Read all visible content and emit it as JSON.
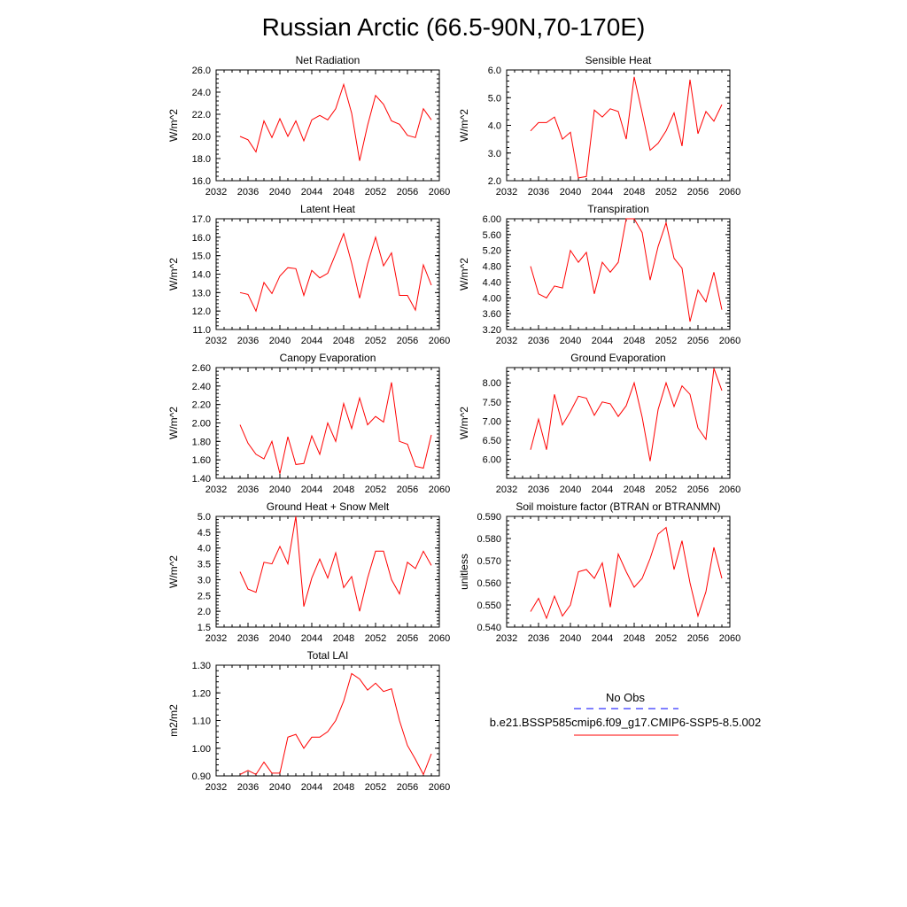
{
  "page": {
    "title": "Russian Arctic (66.5-90N,70-170E)"
  },
  "legend": {
    "obs_label": "No Obs",
    "model_label": "b.e21.BSSP585cmip6.f09_g17.CMIP6-SSP5-8.5.002",
    "obs_color": "#0000ff",
    "model_color": "#ff0000"
  },
  "chart_data": [
    {
      "type": "line",
      "title": "Net Radiation",
      "xlabel": "",
      "ylabel": "W/m^2",
      "xlim": [
        2032,
        2060
      ],
      "ylim": [
        16,
        26
      ],
      "xticks": [
        "2032",
        "2036",
        "2040",
        "2044",
        "2048",
        "2052",
        "2056",
        "2060"
      ],
      "yticks": [
        "16.0",
        "18.0",
        "20.0",
        "22.0",
        "24.0",
        "26.0"
      ],
      "x": [
        2035,
        2036,
        2037,
        2038,
        2039,
        2040,
        2041,
        2042,
        2043,
        2044,
        2045,
        2046,
        2047,
        2048,
        2049,
        2050,
        2051,
        2052,
        2053,
        2054,
        2055,
        2056,
        2057,
        2058,
        2059
      ],
      "series": [
        {
          "values": [
            20.0,
            19.7,
            18.6,
            21.4,
            19.9,
            21.6,
            20.0,
            21.4,
            19.6,
            21.5,
            21.9,
            21.5,
            22.5,
            24.7,
            22.1,
            17.8,
            21.0,
            23.7,
            22.9,
            21.4,
            21.1,
            20.1,
            19.9,
            22.5,
            21.5
          ]
        }
      ]
    },
    {
      "type": "line",
      "title": "Sensible Heat",
      "xlabel": "",
      "ylabel": "W/m^2",
      "xlim": [
        2032,
        2060
      ],
      "ylim": [
        2,
        6
      ],
      "xticks": [
        "2032",
        "2036",
        "2040",
        "2044",
        "2048",
        "2052",
        "2056",
        "2060"
      ],
      "yticks": [
        "2.0",
        "3.0",
        "4.0",
        "5.0",
        "6.0"
      ],
      "x": [
        2035,
        2036,
        2037,
        2038,
        2039,
        2040,
        2041,
        2042,
        2043,
        2044,
        2045,
        2046,
        2047,
        2048,
        2049,
        2050,
        2051,
        2052,
        2053,
        2054,
        2055,
        2056,
        2057,
        2058,
        2059
      ],
      "series": [
        {
          "values": [
            3.8,
            4.1,
            4.1,
            4.3,
            3.5,
            3.75,
            2.1,
            2.15,
            4.55,
            4.3,
            4.6,
            4.5,
            3.5,
            5.75,
            4.45,
            3.1,
            3.35,
            3.8,
            4.45,
            3.25,
            5.65,
            3.7,
            4.5,
            4.15,
            4.75
          ]
        }
      ]
    },
    {
      "type": "line",
      "title": "Latent Heat",
      "xlabel": "",
      "ylabel": "W/m^2",
      "xlim": [
        2032,
        2060
      ],
      "ylim": [
        11,
        17
      ],
      "xticks": [
        "2032",
        "2036",
        "2040",
        "2044",
        "2048",
        "2052",
        "2056",
        "2060"
      ],
      "yticks": [
        "11.0",
        "12.0",
        "13.0",
        "14.0",
        "15.0",
        "16.0",
        "17.0"
      ],
      "x": [
        2035,
        2036,
        2037,
        2038,
        2039,
        2040,
        2041,
        2042,
        2043,
        2044,
        2045,
        2046,
        2047,
        2048,
        2049,
        2050,
        2051,
        2052,
        2053,
        2054,
        2055,
        2056,
        2057,
        2058,
        2059
      ],
      "series": [
        {
          "values": [
            13.0,
            12.9,
            12.0,
            13.55,
            12.95,
            13.9,
            14.35,
            14.3,
            12.85,
            14.2,
            13.8,
            14.05,
            15.1,
            16.2,
            14.6,
            12.7,
            14.55,
            16.0,
            14.45,
            15.15,
            12.85,
            12.85,
            12.05,
            14.5,
            13.4
          ]
        }
      ]
    },
    {
      "type": "line",
      "title": "Transpiration",
      "xlabel": "",
      "ylabel": "W/m^2",
      "xlim": [
        2032,
        2060
      ],
      "ylim": [
        3.2,
        6.0
      ],
      "xticks": [
        "2032",
        "2036",
        "2040",
        "2044",
        "2048",
        "2052",
        "2056",
        "2060"
      ],
      "yticks": [
        "3.20",
        "3.60",
        "4.00",
        "4.40",
        "4.80",
        "5.20",
        "5.60",
        "6.00"
      ],
      "x": [
        2035,
        2036,
        2037,
        2038,
        2039,
        2040,
        2041,
        2042,
        2043,
        2044,
        2045,
        2046,
        2047,
        2048,
        2049,
        2050,
        2051,
        2052,
        2053,
        2054,
        2055,
        2056,
        2057,
        2058,
        2059
      ],
      "series": [
        {
          "values": [
            4.8,
            4.1,
            4.0,
            4.3,
            4.25,
            5.2,
            4.9,
            5.15,
            4.1,
            4.9,
            4.65,
            4.9,
            6.05,
            6.0,
            5.65,
            4.45,
            5.3,
            5.9,
            5.0,
            4.75,
            3.4,
            4.2,
            3.9,
            4.65,
            3.7
          ]
        }
      ]
    },
    {
      "type": "line",
      "title": "Canopy Evaporation",
      "xlabel": "",
      "ylabel": "W/m^2",
      "xlim": [
        2032,
        2060
      ],
      "ylim": [
        1.4,
        2.6
      ],
      "xticks": [
        "2032",
        "2036",
        "2040",
        "2044",
        "2048",
        "2052",
        "2056",
        "2060"
      ],
      "yticks": [
        "1.40",
        "1.60",
        "1.80",
        "2.00",
        "2.20",
        "2.40",
        "2.60"
      ],
      "x": [
        2035,
        2036,
        2037,
        2038,
        2039,
        2040,
        2041,
        2042,
        2043,
        2044,
        2045,
        2046,
        2047,
        2048,
        2049,
        2050,
        2051,
        2052,
        2053,
        2054,
        2055,
        2056,
        2057,
        2058,
        2059
      ],
      "series": [
        {
          "values": [
            1.98,
            1.78,
            1.66,
            1.61,
            1.8,
            1.45,
            1.85,
            1.55,
            1.56,
            1.86,
            1.66,
            2.0,
            1.8,
            2.21,
            1.94,
            2.27,
            1.98,
            2.07,
            2.01,
            2.44,
            1.8,
            1.77,
            1.53,
            1.51,
            1.87
          ]
        }
      ]
    },
    {
      "type": "line",
      "title": "Ground Evaporation",
      "xlabel": "",
      "ylabel": "W/m^2",
      "xlim": [
        2032,
        2060
      ],
      "ylim": [
        5.5,
        8.4
      ],
      "xticks": [
        "2032",
        "2036",
        "2040",
        "2044",
        "2048",
        "2052",
        "2056",
        "2060"
      ],
      "yticks": [
        "6.00",
        "6.50",
        "7.00",
        "7.50",
        "8.00"
      ],
      "x": [
        2035,
        2036,
        2037,
        2038,
        2039,
        2040,
        2041,
        2042,
        2043,
        2044,
        2045,
        2046,
        2047,
        2048,
        2049,
        2050,
        2051,
        2052,
        2053,
        2054,
        2055,
        2056,
        2057,
        2058,
        2059
      ],
      "series": [
        {
          "values": [
            6.25,
            7.05,
            6.25,
            7.7,
            6.9,
            7.25,
            7.65,
            7.6,
            7.15,
            7.5,
            7.45,
            7.12,
            7.4,
            8.0,
            7.1,
            5.95,
            7.3,
            8.0,
            7.38,
            7.92,
            7.7,
            6.82,
            6.52,
            8.38,
            7.8
          ]
        }
      ]
    },
    {
      "type": "line",
      "title": "Ground Heat + Snow Melt",
      "xlabel": "",
      "ylabel": "W/m^2",
      "xlim": [
        2032,
        2060
      ],
      "ylim": [
        1.5,
        5.0
      ],
      "xticks": [
        "2032",
        "2036",
        "2040",
        "2044",
        "2048",
        "2052",
        "2056",
        "2060"
      ],
      "yticks": [
        "1.5",
        "2.0",
        "2.5",
        "3.0",
        "3.5",
        "4.0",
        "4.5",
        "5.0"
      ],
      "x": [
        2035,
        2036,
        2037,
        2038,
        2039,
        2040,
        2041,
        2042,
        2043,
        2044,
        2045,
        2046,
        2047,
        2048,
        2049,
        2050,
        2051,
        2052,
        2053,
        2054,
        2055,
        2056,
        2057,
        2058,
        2059
      ],
      "series": [
        {
          "values": [
            3.25,
            2.7,
            2.6,
            3.55,
            3.5,
            4.05,
            3.5,
            5.0,
            2.15,
            3.05,
            3.65,
            3.05,
            3.85,
            2.75,
            3.1,
            2.0,
            3.05,
            3.9,
            3.9,
            3.0,
            2.55,
            3.55,
            3.35,
            3.9,
            3.45
          ]
        }
      ]
    },
    {
      "type": "line",
      "title": "Soil moisture factor (BTRAN or BTRANMN)",
      "xlabel": "",
      "ylabel": "unitless",
      "xlim": [
        2032,
        2060
      ],
      "ylim": [
        0.54,
        0.59
      ],
      "xticks": [
        "2032",
        "2036",
        "2040",
        "2044",
        "2048",
        "2052",
        "2056",
        "2060"
      ],
      "yticks": [
        "0.540",
        "0.550",
        "0.560",
        "0.570",
        "0.580",
        "0.590"
      ],
      "x": [
        2035,
        2036,
        2037,
        2038,
        2039,
        2040,
        2041,
        2042,
        2043,
        2044,
        2045,
        2046,
        2047,
        2048,
        2049,
        2050,
        2051,
        2052,
        2053,
        2054,
        2055,
        2056,
        2057,
        2058,
        2059
      ],
      "series": [
        {
          "values": [
            0.547,
            0.553,
            0.544,
            0.554,
            0.545,
            0.55,
            0.565,
            0.566,
            0.562,
            0.569,
            0.549,
            0.573,
            0.565,
            0.558,
            0.562,
            0.571,
            0.582,
            0.585,
            0.566,
            0.579,
            0.56,
            0.545,
            0.556,
            0.576,
            0.562
          ]
        }
      ]
    },
    {
      "type": "line",
      "title": "Total LAI",
      "xlabel": "",
      "ylabel": "m2/m2",
      "xlim": [
        2032,
        2060
      ],
      "ylim": [
        0.9,
        1.3
      ],
      "xticks": [
        "2032",
        "2036",
        "2040",
        "2044",
        "2048",
        "2052",
        "2056",
        "2060"
      ],
      "yticks": [
        "0.90",
        "1.00",
        "1.10",
        "1.20",
        "1.30"
      ],
      "x": [
        2035,
        2036,
        2037,
        2038,
        2039,
        2040,
        2041,
        2042,
        2043,
        2044,
        2045,
        2046,
        2047,
        2048,
        2049,
        2050,
        2051,
        2052,
        2053,
        2054,
        2055,
        2056,
        2057,
        2058,
        2059
      ],
      "series": [
        {
          "values": [
            0.905,
            0.92,
            0.905,
            0.95,
            0.91,
            0.91,
            1.04,
            1.05,
            1.0,
            1.04,
            1.04,
            1.06,
            1.1,
            1.17,
            1.27,
            1.25,
            1.21,
            1.235,
            1.205,
            1.215,
            1.1,
            1.01,
            0.96,
            0.905,
            0.98
          ]
        }
      ]
    }
  ]
}
